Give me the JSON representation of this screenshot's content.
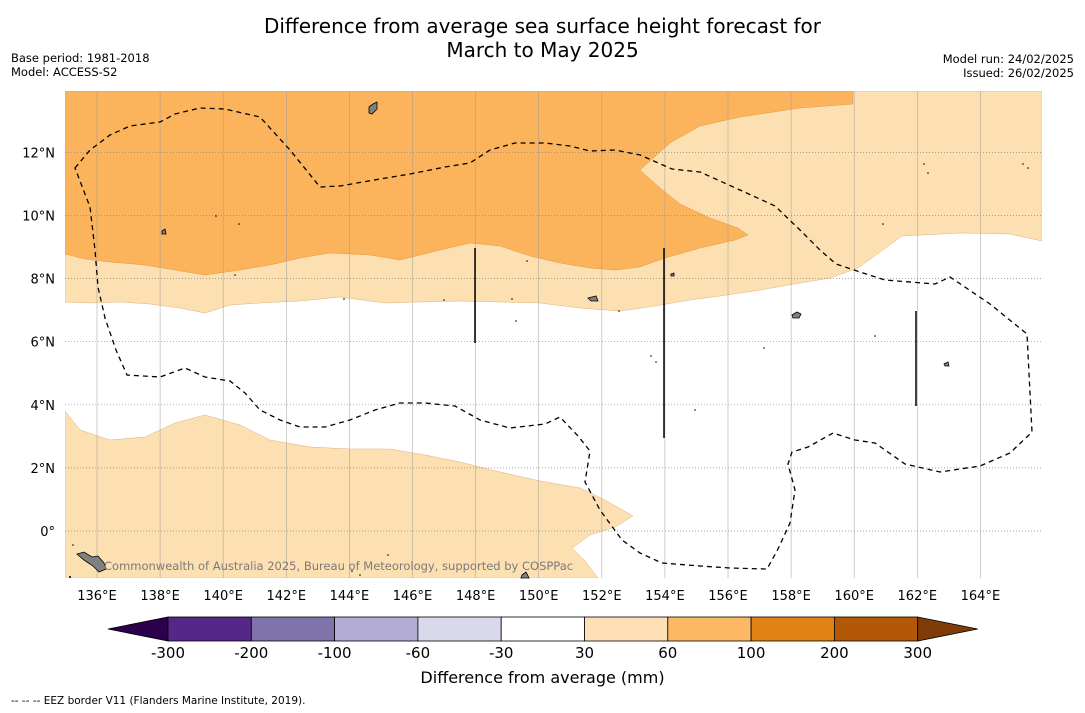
{
  "header": {
    "title_line1": "Difference from average sea surface height forecast for",
    "title_line2": "March to May 2025",
    "base_period": "Base period: 1981-2018",
    "model": "Model: ACCESS-S2",
    "model_run": "Model run: 24/02/2025",
    "issued": "Issued: 26/02/2025"
  },
  "map": {
    "lon_labels": [
      "136°E",
      "138°E",
      "140°E",
      "142°E",
      "144°E",
      "146°E",
      "148°E",
      "150°E",
      "152°E",
      "154°E",
      "156°E",
      "158°E",
      "160°E",
      "162°E",
      "164°E"
    ],
    "lat_labels": [
      "12°N",
      "10°N",
      "8°N",
      "6°N",
      "4°N",
      "2°N",
      "0°"
    ],
    "copyright": "Commonwealth of Australia 2025, Bureau of Meteorology, supported by COSPPac",
    "colors": {
      "band_60_100": "#fbb45c",
      "band_30_60": "#fde0b2",
      "neutral": "#ffffff",
      "land": "#808080"
    }
  },
  "colorbar": {
    "title": "Difference from average (mm)",
    "tick_labels": [
      "-300",
      "-200",
      "-100",
      "-60",
      "-30",
      "30",
      "60",
      "100",
      "200",
      "300"
    ],
    "colors": [
      "#2d004b",
      "#542788",
      "#8073ac",
      "#b2abd2",
      "#d8daeb",
      "#ffffff",
      "#fee0b6",
      "#fdb863",
      "#e08214",
      "#b35806",
      "#7f3b08"
    ]
  },
  "footer": {
    "legend_symbol": "--  --  --",
    "eez_note": "EEZ border V11 (Flanders Marine Institute, 2019)."
  }
}
